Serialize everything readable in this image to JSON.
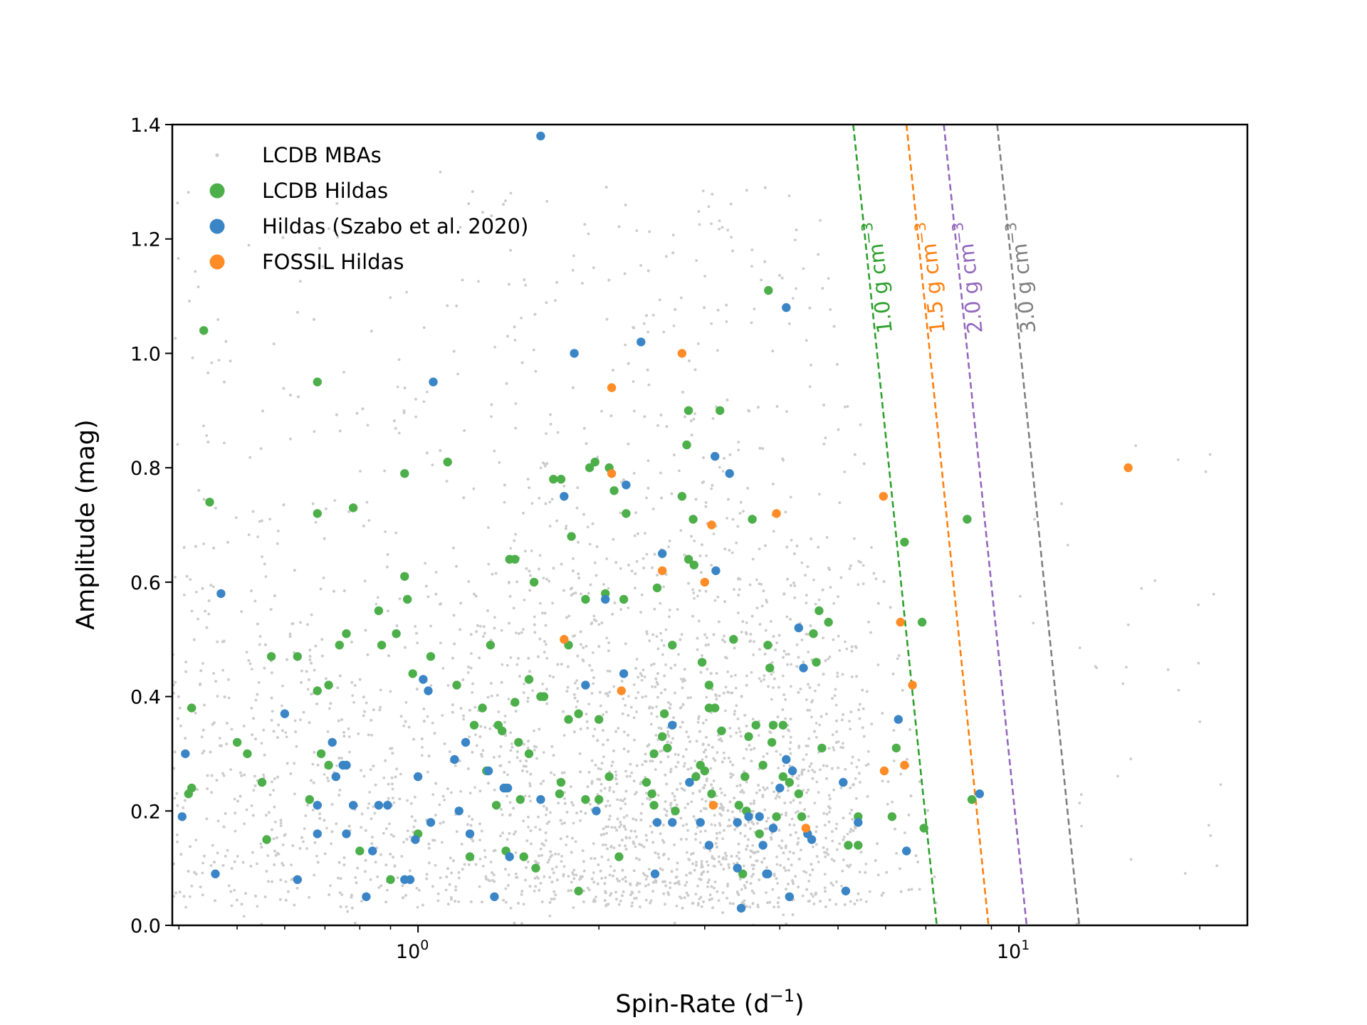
{
  "chart_data": {
    "type": "scatter",
    "xlabel": "Spin-Rate (d",
    "xlabel_sup": "−1",
    "xlabel_close": ")",
    "ylabel": "Amplitude (mag)",
    "xscale": "log",
    "xlim": [
      0.39,
      24
    ],
    "ylim": [
      0,
      1.4
    ],
    "yticks": [
      "0.0",
      "0.2",
      "0.4",
      "0.6",
      "0.8",
      "1.0",
      "1.2",
      "1.4"
    ],
    "xticks": [
      {
        "value": 1,
        "base": "10",
        "exp": "0"
      },
      {
        "value": 10,
        "base": "10",
        "exp": "1"
      }
    ],
    "grid": false,
    "legend_position": "top-left",
    "legend": [
      {
        "label": "LCDB MBAs",
        "color": "#cccccc",
        "marker": "small"
      },
      {
        "label": "LCDB Hildas",
        "color": "#4daf4a",
        "marker": "large"
      },
      {
        "label": "Hildas (Szabo et al. 2020)",
        "color": "#3a85c6",
        "marker": "large"
      },
      {
        "label": "FOSSIL Hildas",
        "color": "#ff8c26",
        "marker": "large"
      }
    ],
    "density_lines": [
      {
        "label": "1.0 g cm",
        "sup": "−3",
        "color": "#2ca02c",
        "points": [
          [
            5.3,
            1.4
          ],
          [
            7.3,
            0.0
          ]
        ]
      },
      {
        "label": "1.5 g cm",
        "sup": "−3",
        "color": "#ff7f0e",
        "points": [
          [
            6.5,
            1.4
          ],
          [
            8.9,
            0.0
          ]
        ]
      },
      {
        "label": "2.0 g cm",
        "sup": "−3",
        "color": "#9467bd",
        "points": [
          [
            7.5,
            1.4
          ],
          [
            10.3,
            0.0
          ]
        ]
      },
      {
        "label": "3.0 g cm",
        "sup": "−3",
        "color": "#7f7f7f",
        "points": [
          [
            9.2,
            1.4
          ],
          [
            12.6,
            0.0
          ]
        ]
      }
    ],
    "series": [
      {
        "name": "LCDB Hildas",
        "color": "#4daf4a",
        "points": [
          [
            0.44,
            1.04
          ],
          [
            0.45,
            0.74
          ],
          [
            0.42,
            0.38
          ],
          [
            0.42,
            0.24
          ],
          [
            0.415,
            0.23
          ],
          [
            0.52,
            0.3
          ],
          [
            0.5,
            0.32
          ],
          [
            0.55,
            0.25
          ],
          [
            0.56,
            0.15
          ],
          [
            0.57,
            0.47
          ],
          [
            0.63,
            0.47
          ],
          [
            0.66,
            0.22
          ],
          [
            0.68,
            0.95
          ],
          [
            0.68,
            0.72
          ],
          [
            0.68,
            0.41
          ],
          [
            0.71,
            0.42
          ],
          [
            0.74,
            0.49
          ],
          [
            0.76,
            0.51
          ],
          [
            0.71,
            0.28
          ],
          [
            0.69,
            0.3
          ],
          [
            0.78,
            0.73
          ],
          [
            0.8,
            0.13
          ],
          [
            0.86,
            0.55
          ],
          [
            0.87,
            0.49
          ],
          [
            0.9,
            0.08
          ],
          [
            0.92,
            0.51
          ],
          [
            0.95,
            0.79
          ],
          [
            0.95,
            0.61
          ],
          [
            0.96,
            0.57
          ],
          [
            0.98,
            0.44
          ],
          [
            1.0,
            0.16
          ],
          [
            1.05,
            0.47
          ],
          [
            1.12,
            0.81
          ],
          [
            1.16,
            0.42
          ],
          [
            1.22,
            0.12
          ],
          [
            1.24,
            0.35
          ],
          [
            1.28,
            0.38
          ],
          [
            1.3,
            0.27
          ],
          [
            1.32,
            0.49
          ],
          [
            1.35,
            0.21
          ],
          [
            1.36,
            0.35
          ],
          [
            1.38,
            0.34
          ],
          [
            1.4,
            0.24
          ],
          [
            1.4,
            0.13
          ],
          [
            1.42,
            0.64
          ],
          [
            1.45,
            0.39
          ],
          [
            1.45,
            0.64
          ],
          [
            1.47,
            0.32
          ],
          [
            1.48,
            0.22
          ],
          [
            1.5,
            0.12
          ],
          [
            1.53,
            0.43
          ],
          [
            1.53,
            0.3
          ],
          [
            1.56,
            0.6
          ],
          [
            1.57,
            0.1
          ],
          [
            1.6,
            0.4
          ],
          [
            1.62,
            0.4
          ],
          [
            1.68,
            0.78
          ],
          [
            1.73,
            0.78
          ],
          [
            1.72,
            0.23
          ],
          [
            1.73,
            0.25
          ],
          [
            1.78,
            0.49
          ],
          [
            1.78,
            0.36
          ],
          [
            1.8,
            0.68
          ],
          [
            1.85,
            0.06
          ],
          [
            1.85,
            0.37
          ],
          [
            1.9,
            0.22
          ],
          [
            1.9,
            0.57
          ],
          [
            1.93,
            0.8
          ],
          [
            1.97,
            0.81
          ],
          [
            2.0,
            0.36
          ],
          [
            2.0,
            0.22
          ],
          [
            2.05,
            0.58
          ],
          [
            2.08,
            0.8
          ],
          [
            2.08,
            0.26
          ],
          [
            2.12,
            0.76
          ],
          [
            2.16,
            0.12
          ],
          [
            2.2,
            0.57
          ],
          [
            2.22,
            0.72
          ],
          [
            2.4,
            0.25
          ],
          [
            2.45,
            0.23
          ],
          [
            2.47,
            0.3
          ],
          [
            2.47,
            0.21
          ],
          [
            2.5,
            0.59
          ],
          [
            2.55,
            0.33
          ],
          [
            2.57,
            0.37
          ],
          [
            2.6,
            0.31
          ],
          [
            2.65,
            0.49
          ],
          [
            2.68,
            0.2
          ],
          [
            2.75,
            0.75
          ],
          [
            2.8,
            0.84
          ],
          [
            2.82,
            0.9
          ],
          [
            2.82,
            0.64
          ],
          [
            2.87,
            0.71
          ],
          [
            2.88,
            0.63
          ],
          [
            2.9,
            0.26
          ],
          [
            2.95,
            0.28
          ],
          [
            2.97,
            0.46
          ],
          [
            3.0,
            0.27
          ],
          [
            3.05,
            0.42
          ],
          [
            3.05,
            0.38
          ],
          [
            3.08,
            0.23
          ],
          [
            3.12,
            0.38
          ],
          [
            3.18,
            0.9
          ],
          [
            3.2,
            0.34
          ],
          [
            3.35,
            0.5
          ],
          [
            3.42,
            0.21
          ],
          [
            3.47,
            0.09
          ],
          [
            3.5,
            0.26
          ],
          [
            3.52,
            0.2
          ],
          [
            3.55,
            0.33
          ],
          [
            3.6,
            0.71
          ],
          [
            3.65,
            0.35
          ],
          [
            3.7,
            0.16
          ],
          [
            3.75,
            0.28
          ],
          [
            3.82,
            0.49
          ],
          [
            3.83,
            1.11
          ],
          [
            3.85,
            0.45
          ],
          [
            3.88,
            0.32
          ],
          [
            3.9,
            0.35
          ],
          [
            3.95,
            0.19
          ],
          [
            4.05,
            0.26
          ],
          [
            4.05,
            0.35
          ],
          [
            4.15,
            0.25
          ],
          [
            4.3,
            0.23
          ],
          [
            4.35,
            0.19
          ],
          [
            4.55,
            0.51
          ],
          [
            4.6,
            0.46
          ],
          [
            4.65,
            0.55
          ],
          [
            4.7,
            0.31
          ],
          [
            4.82,
            0.53
          ],
          [
            5.2,
            0.14
          ],
          [
            5.4,
            0.19
          ],
          [
            5.4,
            0.14
          ],
          [
            6.15,
            0.19
          ],
          [
            6.25,
            0.31
          ],
          [
            6.45,
            0.67
          ],
          [
            6.9,
            0.53
          ],
          [
            6.95,
            0.17
          ],
          [
            8.2,
            0.71
          ],
          [
            8.35,
            0.22
          ]
        ]
      },
      {
        "name": "Hildas (Szabo et al. 2020)",
        "color": "#3a85c6",
        "points": [
          [
            0.405,
            0.19
          ],
          [
            0.41,
            0.3
          ],
          [
            0.46,
            0.09
          ],
          [
            0.47,
            0.58
          ],
          [
            0.6,
            0.37
          ],
          [
            0.63,
            0.08
          ],
          [
            0.68,
            0.16
          ],
          [
            0.68,
            0.21
          ],
          [
            0.72,
            0.32
          ],
          [
            0.73,
            0.26
          ],
          [
            0.75,
            0.28
          ],
          [
            0.76,
            0.28
          ],
          [
            0.76,
            0.16
          ],
          [
            0.78,
            0.21
          ],
          [
            0.82,
            0.05
          ],
          [
            0.84,
            0.13
          ],
          [
            0.86,
            0.21
          ],
          [
            0.89,
            0.21
          ],
          [
            0.95,
            0.08
          ],
          [
            0.97,
            0.08
          ],
          [
            0.99,
            0.15
          ],
          [
            1.0,
            0.26
          ],
          [
            1.02,
            0.43
          ],
          [
            1.04,
            0.41
          ],
          [
            1.05,
            0.18
          ],
          [
            1.06,
            0.95
          ],
          [
            1.15,
            0.29
          ],
          [
            1.17,
            0.2
          ],
          [
            1.2,
            0.32
          ],
          [
            1.22,
            0.16
          ],
          [
            1.31,
            0.27
          ],
          [
            1.34,
            0.05
          ],
          [
            1.39,
            0.24
          ],
          [
            1.41,
            0.24
          ],
          [
            1.42,
            0.12
          ],
          [
            1.6,
            1.38
          ],
          [
            1.6,
            0.22
          ],
          [
            1.75,
            0.75
          ],
          [
            1.82,
            1.0
          ],
          [
            1.9,
            0.42
          ],
          [
            1.98,
            0.2
          ],
          [
            2.05,
            0.57
          ],
          [
            2.2,
            0.44
          ],
          [
            2.22,
            0.77
          ],
          [
            2.35,
            1.02
          ],
          [
            2.48,
            0.09
          ],
          [
            2.5,
            0.18
          ],
          [
            2.55,
            0.65
          ],
          [
            2.65,
            0.35
          ],
          [
            2.65,
            0.18
          ],
          [
            2.83,
            0.25
          ],
          [
            2.95,
            0.18
          ],
          [
            3.05,
            0.14
          ],
          [
            3.12,
            0.82
          ],
          [
            3.13,
            0.62
          ],
          [
            3.3,
            0.79
          ],
          [
            3.4,
            0.18
          ],
          [
            3.4,
            0.1
          ],
          [
            3.45,
            0.03
          ],
          [
            3.55,
            0.19
          ],
          [
            3.7,
            0.19
          ],
          [
            3.75,
            0.14
          ],
          [
            3.8,
            0.09
          ],
          [
            3.82,
            0.09
          ],
          [
            3.9,
            0.17
          ],
          [
            4.0,
            0.24
          ],
          [
            4.1,
            0.29
          ],
          [
            4.1,
            1.08
          ],
          [
            4.15,
            0.05
          ],
          [
            4.2,
            0.27
          ],
          [
            4.3,
            0.52
          ],
          [
            4.38,
            0.45
          ],
          [
            4.45,
            0.16
          ],
          [
            4.52,
            0.15
          ],
          [
            5.1,
            0.25
          ],
          [
            5.15,
            0.06
          ],
          [
            5.4,
            0.18
          ],
          [
            6.3,
            0.36
          ],
          [
            6.5,
            0.13
          ],
          [
            8.6,
            0.23
          ]
        ]
      },
      {
        "name": "FOSSIL Hildas",
        "color": "#ff8c26",
        "points": [
          [
            1.75,
            0.5
          ],
          [
            2.1,
            0.94
          ],
          [
            2.1,
            0.79
          ],
          [
            2.18,
            0.41
          ],
          [
            2.55,
            0.62
          ],
          [
            2.75,
            1.0
          ],
          [
            3.0,
            0.6
          ],
          [
            3.08,
            0.7
          ],
          [
            3.1,
            0.21
          ],
          [
            3.95,
            0.72
          ],
          [
            4.42,
            0.17
          ],
          [
            5.95,
            0.75
          ],
          [
            5.97,
            0.27
          ],
          [
            6.35,
            0.53
          ],
          [
            6.45,
            0.28
          ],
          [
            6.65,
            0.42
          ],
          [
            15.2,
            0.8
          ]
        ]
      }
    ]
  }
}
